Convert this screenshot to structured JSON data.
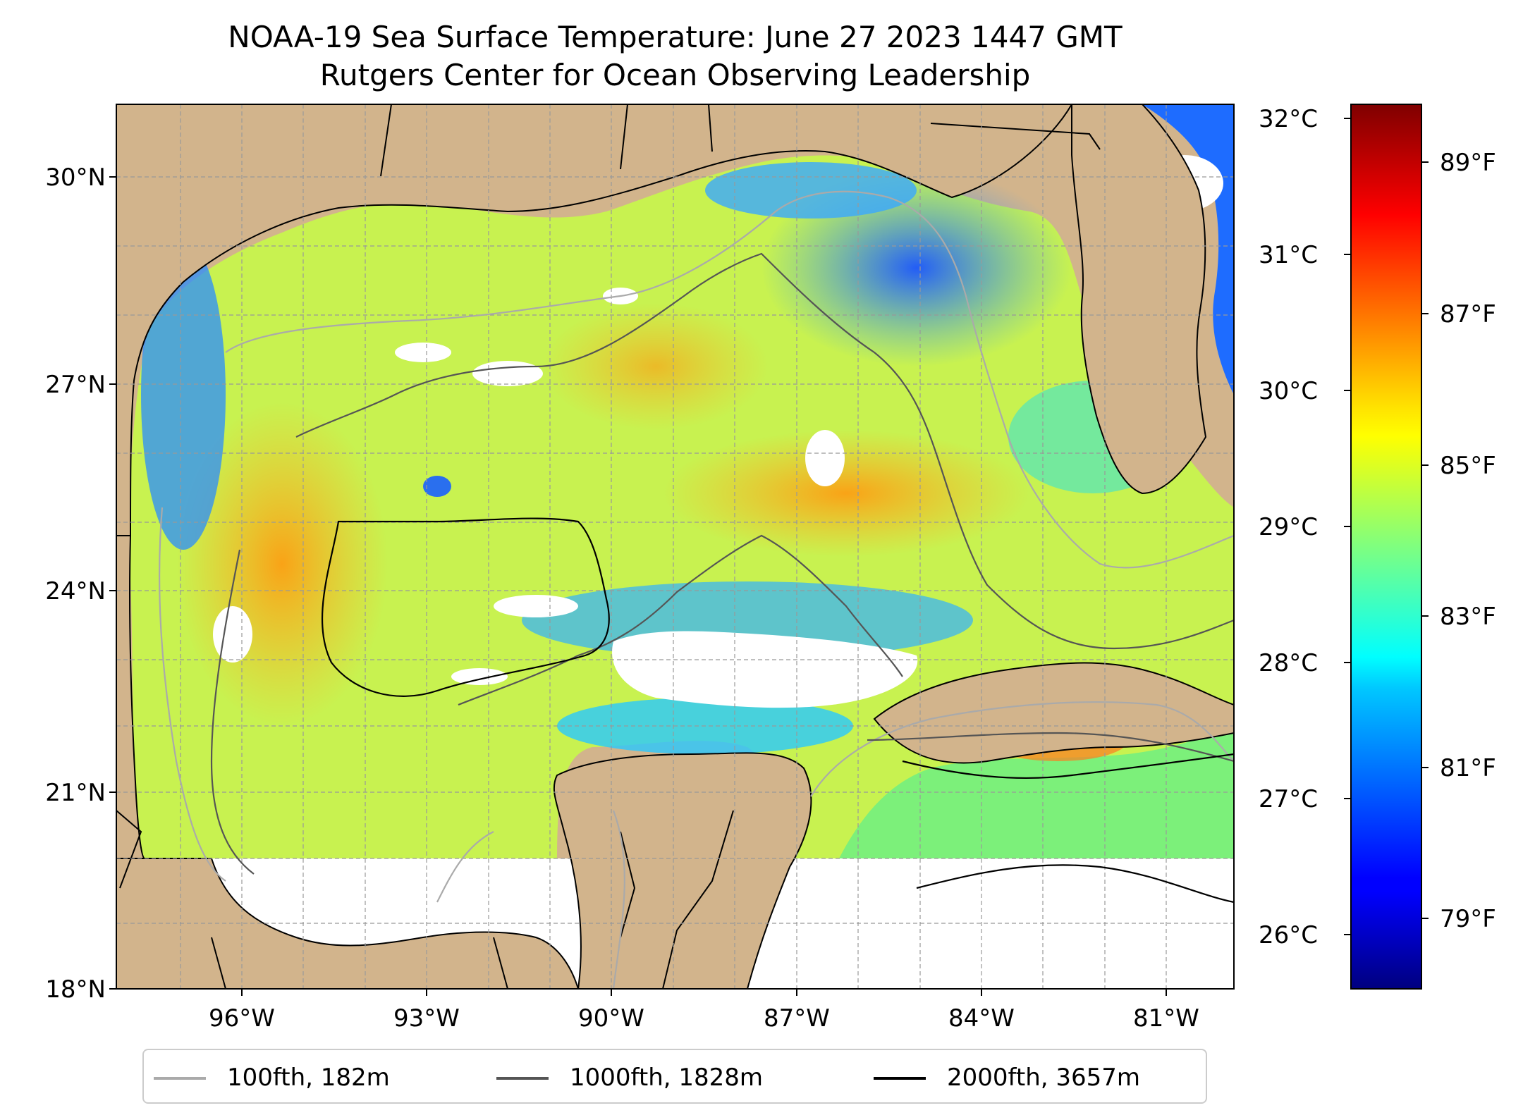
{
  "title": {
    "line1": "NOAA-19 Sea Surface Temperature: June 27 2023 1447 GMT",
    "line2": "Rutgers Center for Ocean Observing Leadership"
  },
  "map": {
    "lat_range": [
      18,
      31
    ],
    "lon_range": [
      -98.1,
      -80.2
    ],
    "lat_ticks": [
      "30°N",
      "27°N",
      "24°N",
      "21°N",
      "18°N"
    ],
    "lon_ticks": [
      "96°W",
      "93°W",
      "90°W",
      "87°W",
      "84°W",
      "81°W"
    ],
    "land_color": "#d2b48c",
    "gridlines": "dashed"
  },
  "colorbar": {
    "colormap": "jet",
    "celsius_ticks": [
      "32°C",
      "31°C",
      "30°C",
      "29°C",
      "28°C",
      "27°C",
      "26°C"
    ],
    "fahrenheit_ticks": [
      "89°F",
      "87°F",
      "85°F",
      "83°F",
      "81°F",
      "79°F"
    ]
  },
  "legend": {
    "items": [
      {
        "label": "100fth, 182m",
        "color": "#aaaaaa"
      },
      {
        "label": "1000fth, 1828m",
        "color": "#555555"
      },
      {
        "label": "2000fth, 3657m",
        "color": "#000000"
      }
    ]
  }
}
